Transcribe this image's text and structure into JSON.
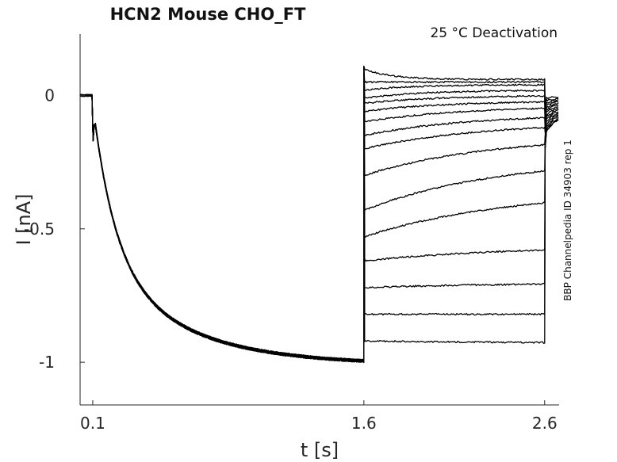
{
  "chart_data": {
    "type": "line",
    "title": "HCN2  Mouse  CHO_FT",
    "subtitle": "25 °C  Deactivation",
    "side_label": "BBP Channelpedia ID 34903 rep 1",
    "xlabel": "t [s]",
    "ylabel": "I [nA]",
    "xlim": [
      0.03,
      2.68
    ],
    "ylim": [
      -1.16,
      0.23
    ],
    "x_ticks": [
      0.1,
      1.6,
      2.6
    ],
    "x_tick_labels": [
      "0.1",
      "1.6",
      "2.6"
    ],
    "y_ticks": [
      0,
      -0.5,
      -1
    ],
    "y_tick_labels": [
      "0",
      "-0.5",
      "-1"
    ],
    "grid": false,
    "legend": "none",
    "line_color": "#000000",
    "protocol": {
      "holding_end_s": 0.1,
      "activation_end_s": 1.6,
      "test_end_s": 2.6,
      "activation_steady_nA": -1.01,
      "tail_sweeps": [
        {
          "start_nA": 0.1,
          "end_nA": 0.06
        },
        {
          "start_nA": 0.05,
          "end_nA": 0.05
        },
        {
          "start_nA": 0.02,
          "end_nA": 0.04
        },
        {
          "start_nA": -0.01,
          "end_nA": 0.02
        },
        {
          "start_nA": -0.03,
          "end_nA": 0.0
        },
        {
          "start_nA": -0.06,
          "end_nA": -0.02
        },
        {
          "start_nA": -0.1,
          "end_nA": -0.04
        },
        {
          "start_nA": -0.15,
          "end_nA": -0.07
        },
        {
          "start_nA": -0.2,
          "end_nA": -0.1
        },
        {
          "start_nA": -0.3,
          "end_nA": -0.15
        },
        {
          "start_nA": -0.43,
          "end_nA": -0.23
        },
        {
          "start_nA": -0.53,
          "end_nA": -0.35
        },
        {
          "start_nA": -0.62,
          "end_nA": -0.56
        },
        {
          "start_nA": -0.72,
          "end_nA": -0.7
        },
        {
          "start_nA": -0.82,
          "end_nA": -0.82
        },
        {
          "start_nA": -0.92,
          "end_nA": -0.93
        }
      ],
      "return_values_nA": [
        -0.01,
        -0.02,
        -0.03,
        -0.04,
        -0.05,
        -0.06,
        -0.07,
        -0.08,
        -0.09,
        -0.1,
        -0.11,
        -0.12,
        -0.13,
        -0.14,
        -0.15,
        -0.15
      ]
    }
  }
}
